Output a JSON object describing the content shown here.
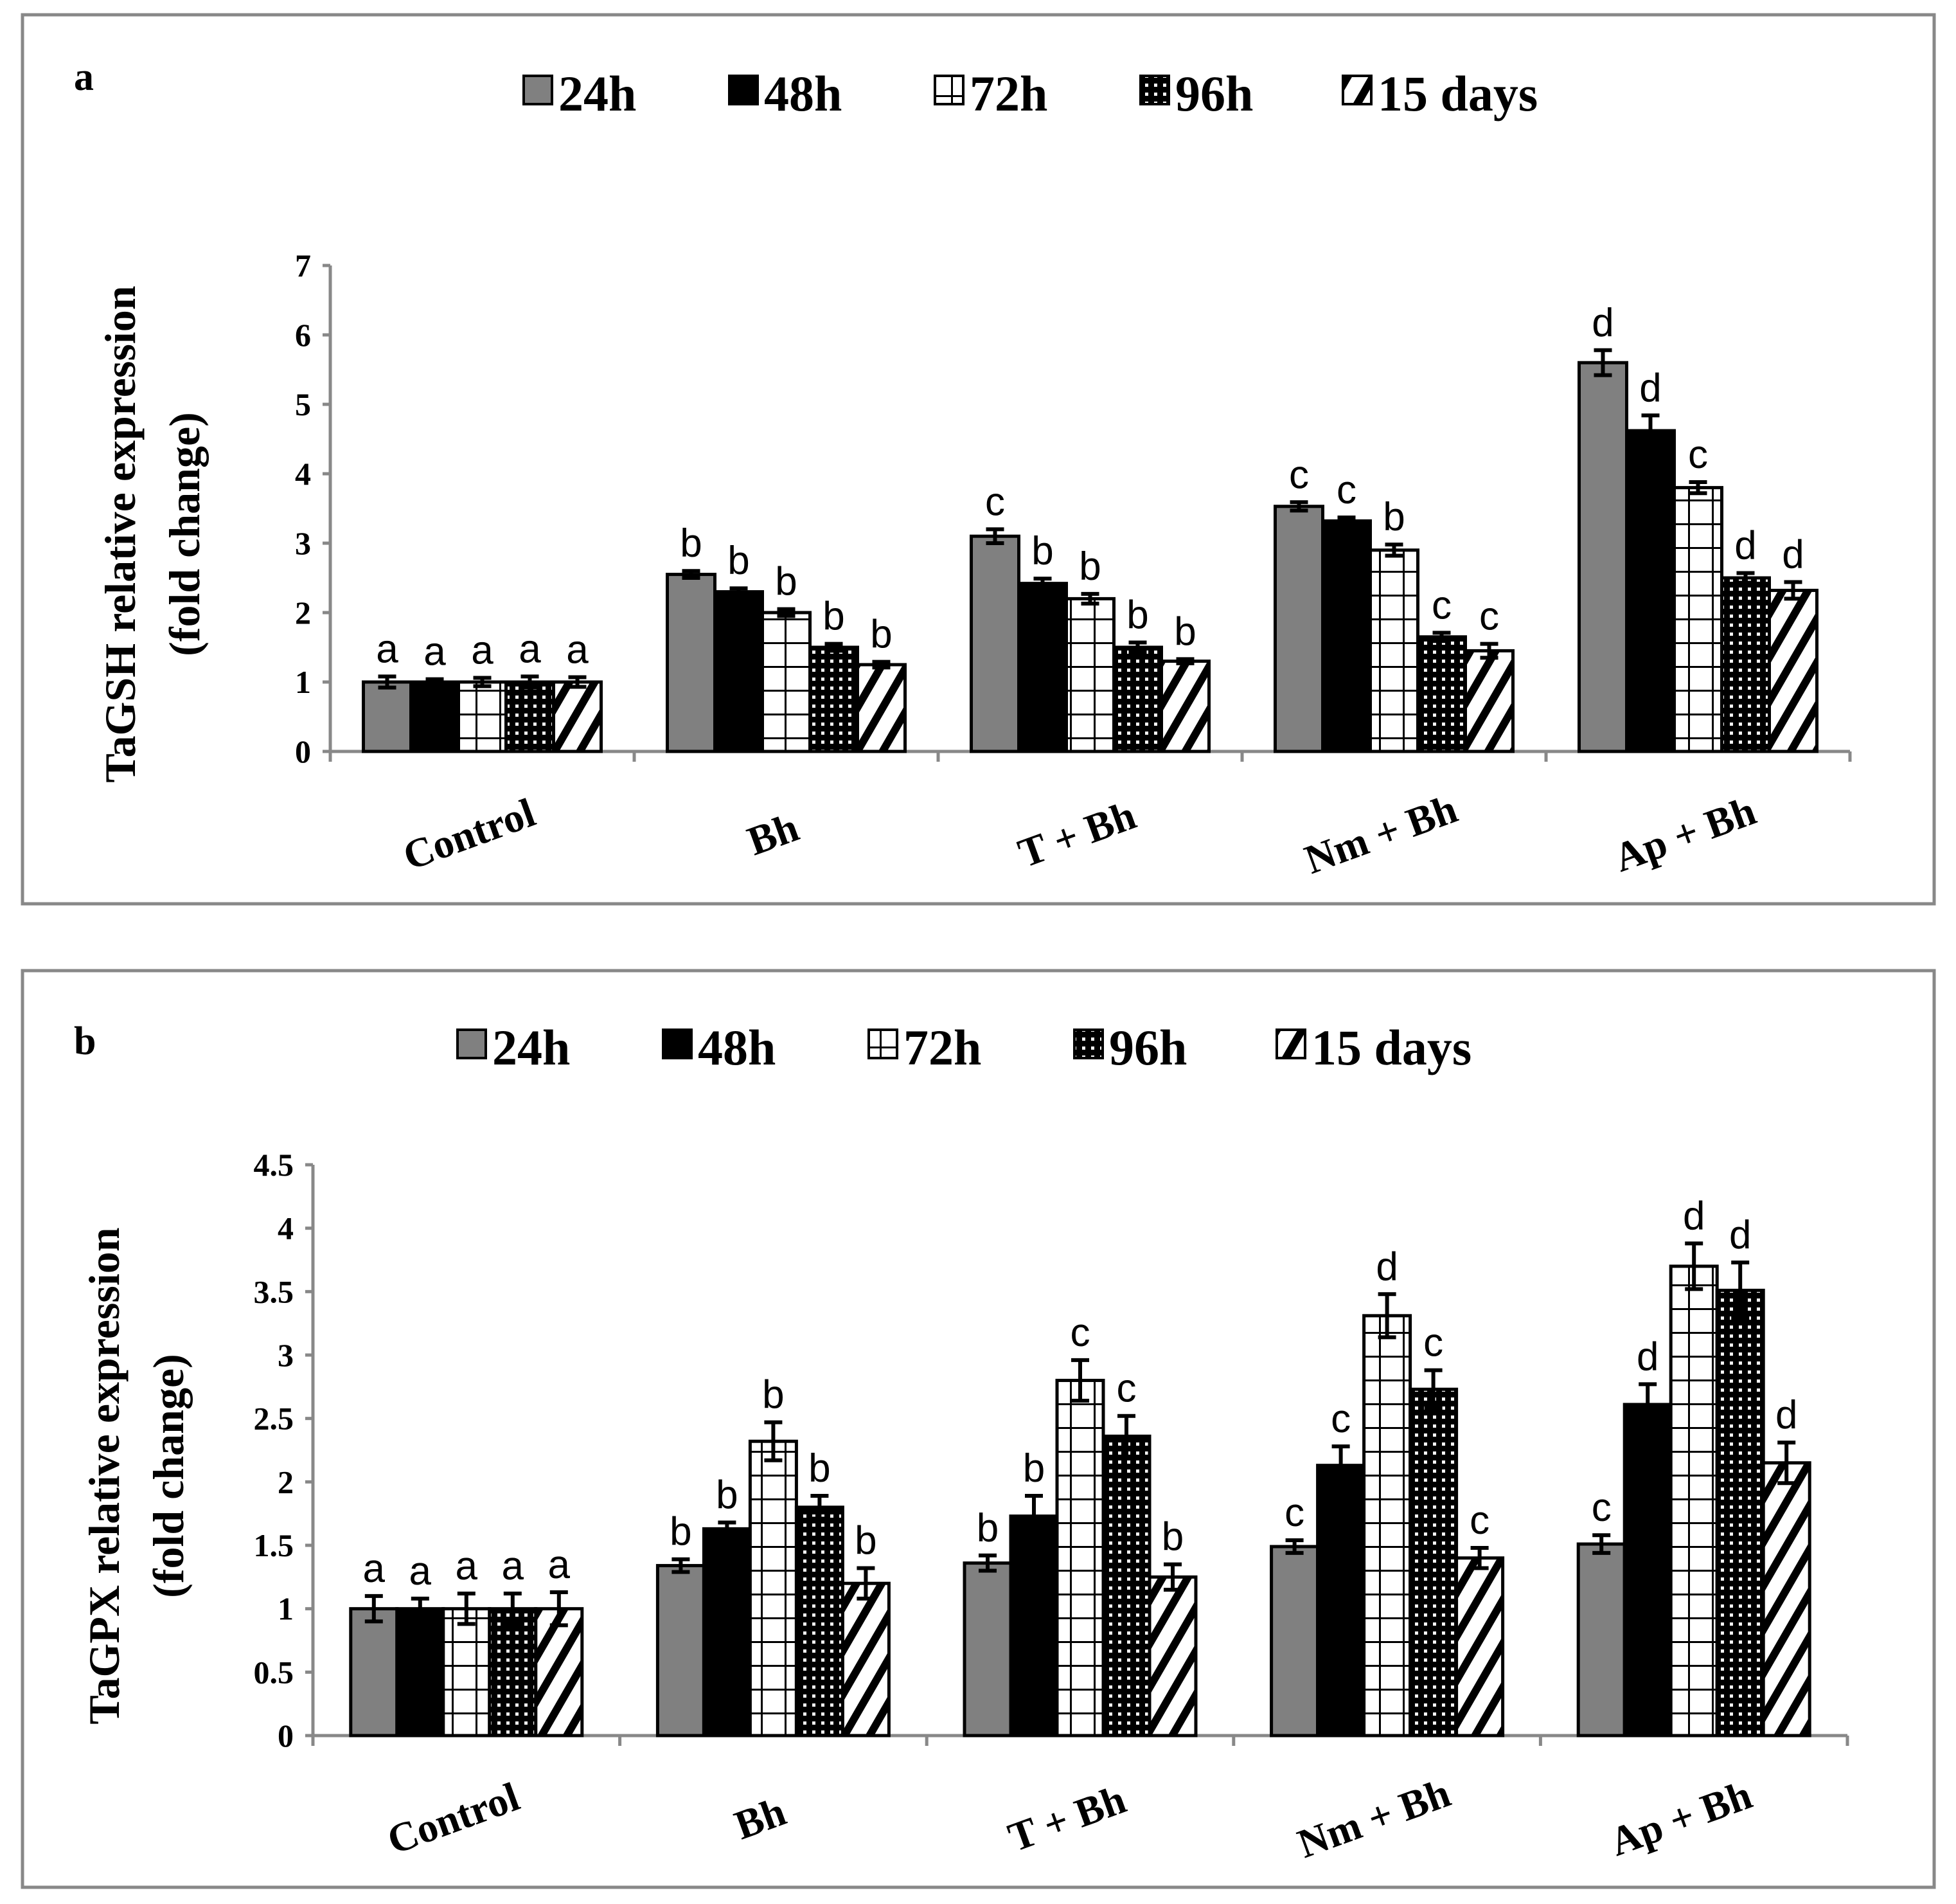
{
  "chart_data": [
    {
      "type": "bar",
      "panel_label": "a",
      "ylabel_line1": "TaGSH relative expression",
      "ylabel_line2": "(fold change)",
      "ylim": [
        0,
        7
      ],
      "yticks": [
        "0",
        "1",
        "2",
        "3",
        "4",
        "5",
        "6",
        "7"
      ],
      "ytick_values": [
        0,
        1,
        2,
        3,
        4,
        5,
        6,
        7
      ],
      "categories": [
        "Control",
        "Bh",
        "T + Bh",
        "Nm + Bh",
        "Ap + Bh"
      ],
      "legend_position": "top-center",
      "series": [
        {
          "name": "24h",
          "pattern": "gray",
          "values": [
            1.0,
            2.55,
            3.1,
            3.53,
            5.6
          ],
          "errors": [
            0.08,
            0.05,
            0.1,
            0.06,
            0.18
          ],
          "letters": [
            "a",
            "b",
            "c",
            "c",
            "d"
          ]
        },
        {
          "name": "48h",
          "pattern": "black",
          "values": [
            1.0,
            2.3,
            2.42,
            3.32,
            4.62
          ],
          "errors": [
            0.04,
            0.05,
            0.07,
            0.05,
            0.22
          ],
          "letters": [
            "a",
            "b",
            "b",
            "c",
            "d"
          ]
        },
        {
          "name": "72h",
          "pattern": "grid",
          "values": [
            1.0,
            2.0,
            2.2,
            2.9,
            3.8
          ],
          "errors": [
            0.06,
            0.05,
            0.07,
            0.08,
            0.08
          ],
          "letters": [
            "a",
            "b",
            "b",
            "b",
            "c"
          ]
        },
        {
          "name": "96h",
          "pattern": "dots",
          "values": [
            1.0,
            1.5,
            1.5,
            1.65,
            2.5
          ],
          "errors": [
            0.08,
            0.05,
            0.07,
            0.06,
            0.07
          ],
          "letters": [
            "a",
            "b",
            "b",
            "c",
            "d"
          ]
        },
        {
          "name": "15 days",
          "pattern": "diag",
          "values": [
            1.0,
            1.25,
            1.3,
            1.45,
            2.32
          ],
          "errors": [
            0.07,
            0.04,
            0.03,
            0.1,
            0.12
          ],
          "letters": [
            "a",
            "b",
            "b",
            "c",
            "d"
          ]
        }
      ]
    },
    {
      "type": "bar",
      "panel_label": "b",
      "ylabel_line1": "TaGPX relative expression",
      "ylabel_line2": "(fold change)",
      "ylim": [
        0,
        4.5
      ],
      "yticks": [
        "0",
        "0.5",
        "1",
        "1.5",
        "2",
        "2.5",
        "3",
        "3.5",
        "4",
        "4.5"
      ],
      "ytick_values": [
        0,
        0.5,
        1,
        1.5,
        2,
        2.5,
        3,
        3.5,
        4,
        4.5
      ],
      "categories": [
        "Control",
        "Bh",
        "T + Bh",
        "Nm + Bh",
        "Ap + Bh"
      ],
      "legend_position": "top-center",
      "series": [
        {
          "name": "24h",
          "pattern": "gray",
          "values": [
            1.0,
            1.34,
            1.36,
            1.49,
            1.51
          ],
          "errors": [
            0.1,
            0.05,
            0.06,
            0.05,
            0.07
          ],
          "letters": [
            "a",
            "b",
            "b",
            "c",
            "c"
          ]
        },
        {
          "name": "48h",
          "pattern": "black",
          "values": [
            1.0,
            1.63,
            1.73,
            2.13,
            2.61
          ],
          "errors": [
            0.08,
            0.05,
            0.16,
            0.15,
            0.16
          ],
          "letters": [
            "a",
            "b",
            "b",
            "c",
            "d"
          ]
        },
        {
          "name": "72h",
          "pattern": "grid",
          "values": [
            1.0,
            2.32,
            2.8,
            3.31,
            3.7
          ],
          "errors": [
            0.12,
            0.15,
            0.16,
            0.17,
            0.18
          ],
          "letters": [
            "a",
            "b",
            "c",
            "d",
            "d"
          ]
        },
        {
          "name": "96h",
          "pattern": "dots",
          "values": [
            1.0,
            1.8,
            2.36,
            2.73,
            3.51
          ],
          "errors": [
            0.12,
            0.09,
            0.16,
            0.15,
            0.22
          ],
          "letters": [
            "a",
            "b",
            "c",
            "c",
            "d"
          ]
        },
        {
          "name": "15 days",
          "pattern": "diag",
          "values": [
            1.0,
            1.2,
            1.25,
            1.4,
            2.15
          ],
          "errors": [
            0.13,
            0.12,
            0.1,
            0.08,
            0.16
          ],
          "letters": [
            "a",
            "b",
            "b",
            "c",
            "d"
          ]
        }
      ]
    }
  ]
}
